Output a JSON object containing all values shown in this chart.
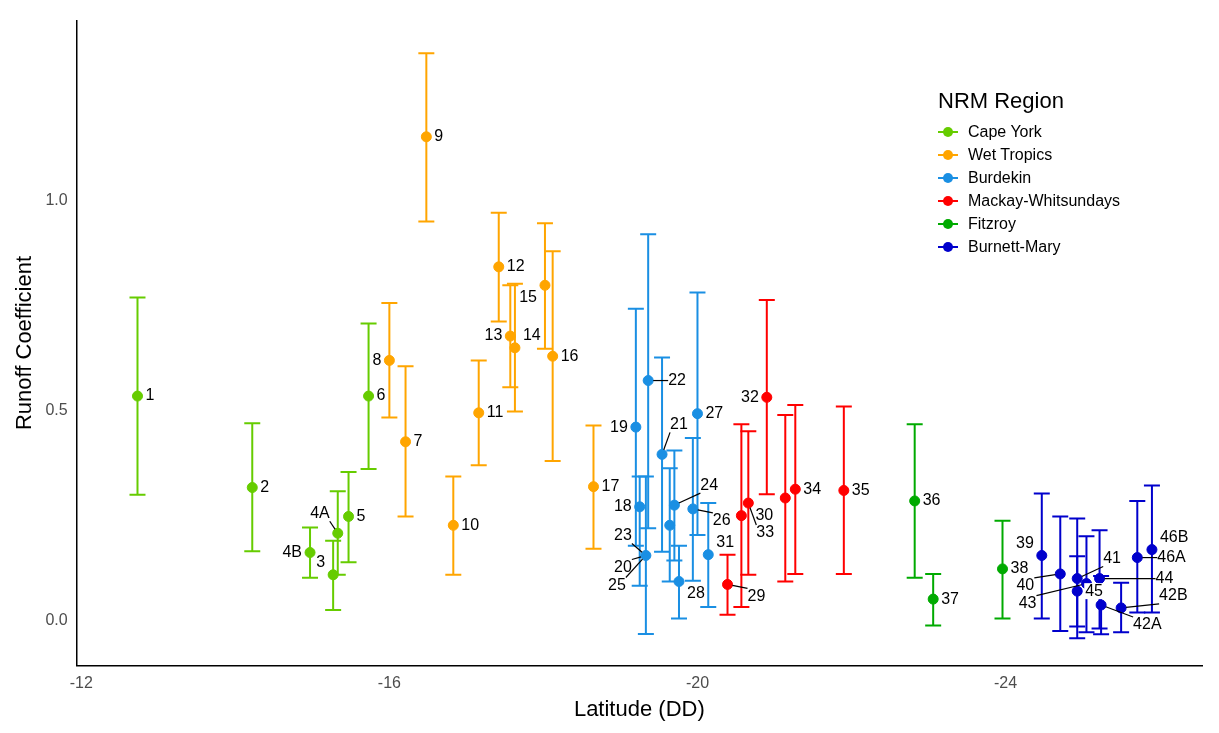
{
  "chart_data": {
    "type": "scatter",
    "xlabel": "Latitude (DD)",
    "ylabel": "Runoff Coefficient",
    "legend_title": "NRM Region",
    "legend": "top right",
    "grid": false,
    "marker": "circle",
    "xlim": [
      -11.94,
      -26.55
    ],
    "ylim": [
      -0.107,
      1.43
    ],
    "xticks": [
      -12,
      -16,
      -20,
      -24
    ],
    "yticks": [
      {
        "value": 0,
        "label": "0.0"
      },
      {
        "value": 0.5,
        "label": "0.5"
      },
      {
        "value": 1,
        "label": "1.0"
      }
    ],
    "series": [
      {
        "name": "Cape York",
        "color": "#66cc00",
        "x": [
          -12.73,
          -14.22,
          -15.27,
          -15.33,
          -14.97,
          -15.47,
          -15.73
        ],
        "values": [
          0.535,
          0.317,
          0.109,
          0.208,
          0.162,
          0.248,
          0.535
        ],
        "errors": [
          [
            0.3,
            0.77
          ],
          [
            0.165,
            0.47
          ],
          [
            0.025,
            0.19
          ],
          [
            0.109,
            0.308
          ],
          [
            0.102,
            0.222
          ],
          [
            0.139,
            0.354
          ],
          [
            0.361,
            0.708
          ]
        ]
      },
      {
        "name": "Wet Tropics",
        "color": "#ffa500",
        "x": [
          -16.21,
          -16.0,
          -16.48,
          -16.83,
          -17.16,
          -17.42,
          -17.57,
          -17.63,
          -18.02,
          -18.12,
          -18.65
        ],
        "values": [
          0.426,
          0.62,
          1.153,
          0.227,
          0.495,
          0.843,
          0.678,
          0.65,
          0.799,
          0.63,
          0.319
        ],
        "errors": [
          [
            0.248,
            0.606
          ],
          [
            0.484,
            0.757
          ],
          [
            0.951,
            1.352
          ],
          [
            0.109,
            0.343
          ],
          [
            0.37,
            0.62
          ],
          [
            0.713,
            0.972
          ],
          [
            0.556,
            0.799
          ],
          [
            0.498,
            0.803
          ],
          [
            0.648,
            0.947
          ],
          [
            0.38,
            0.88
          ],
          [
            0.171,
            0.465
          ]
        ]
      },
      {
        "name": "Burdekin",
        "color": "#1a8fe3",
        "x": [
          -19.25,
          -19.2,
          -19.33,
          -19.36,
          -19.54,
          -19.64,
          -19.7,
          -19.76,
          -19.94,
          -20.0,
          -20.14
        ],
        "values": [
          0.271,
          0.461,
          0.155,
          0.572,
          0.396,
          0.227,
          0.275,
          0.093,
          0.266,
          0.493,
          0.157
        ],
        "errors": [
          [
            0.083,
            0.343
          ],
          [
            0.178,
            0.743
          ],
          [
            -0.032,
            0.343
          ],
          [
            0.22,
            0.921
          ],
          [
            0.164,
            0.627
          ],
          [
            0.093,
            0.363
          ],
          [
            0.143,
            0.405
          ],
          [
            0.005,
            0.178
          ],
          [
            0.095,
            0.435
          ],
          [
            0.204,
            0.782
          ],
          [
            0.032,
            0.28
          ]
        ]
      },
      {
        "name": "Mackay-Whitsundays",
        "color": "#ff0000",
        "x": [
          -20.39,
          -20.57,
          -20.66,
          -20.9,
          -21.14,
          -21.27,
          -21.9
        ],
        "values": [
          0.086,
          0.25,
          0.28,
          0.532,
          0.292,
          0.313,
          0.31
        ],
        "errors": [
          [
            0.014,
            0.157
          ],
          [
            0.032,
            0.468
          ],
          [
            0.109,
            0.451
          ],
          [
            0.301,
            0.764
          ],
          [
            0.093,
            0.49
          ],
          [
            0.111,
            0.514
          ],
          [
            0.111,
            0.51
          ]
        ]
      },
      {
        "name": "Fitzroy",
        "color": "#00aa00",
        "x": [
          -22.82,
          -23.06,
          -23.96
        ],
        "values": [
          0.285,
          0.051,
          0.123
        ],
        "errors": [
          [
            0.102,
            0.468
          ],
          [
            -0.012,
            0.111
          ],
          [
            0.005,
            0.238
          ]
        ]
      },
      {
        "name": "Burnett-Mary",
        "color": "#0000cc",
        "x": [
          -24.47,
          -24.71,
          -24.93,
          -24.93,
          -25.05,
          -25.22,
          -25.24,
          -25.5,
          -25.71,
          -25.9
        ],
        "values": [
          0.155,
          0.111,
          0.1,
          0.07,
          0.088,
          0.1,
          0.037,
          0.03,
          0.15,
          0.169
        ],
        "errors": [
          [
            0.005,
            0.303
          ],
          [
            -0.025,
            0.248
          ],
          [
            -0.042,
            0.243
          ],
          [
            -0.014,
            0.153
          ],
          [
            -0.028,
            0.201
          ],
          [
            -0.019,
            0.215
          ],
          [
            -0.033,
            0.106
          ],
          [
            -0.028,
            0.09
          ],
          [
            0.019,
            0.285
          ],
          [
            0.019,
            0.322
          ]
        ]
      }
    ],
    "annotations": [
      {
        "text": "1",
        "x": -12.73,
        "y": 0.535
      },
      {
        "text": "2",
        "x": -14.22,
        "y": 0.317
      },
      {
        "text": "3",
        "x": -15.27,
        "y": 0.109
      },
      {
        "text": "4A",
        "x": -15.33,
        "y": 0.208
      },
      {
        "text": "4B",
        "x": -14.97,
        "y": 0.162
      },
      {
        "text": "5",
        "x": -15.47,
        "y": 0.248
      },
      {
        "text": "6",
        "x": -15.73,
        "y": 0.535
      },
      {
        "text": "7",
        "x": -16.21,
        "y": 0.426
      },
      {
        "text": "8",
        "x": -16.0,
        "y": 0.62
      },
      {
        "text": "9",
        "x": -16.48,
        "y": 1.153
      },
      {
        "text": "10",
        "x": -16.83,
        "y": 0.227
      },
      {
        "text": "11",
        "x": -17.16,
        "y": 0.495
      },
      {
        "text": "12",
        "x": -17.42,
        "y": 0.843
      },
      {
        "text": "13",
        "x": -17.57,
        "y": 0.678
      },
      {
        "text": "14",
        "x": -17.63,
        "y": 0.65
      },
      {
        "text": "15",
        "x": -18.02,
        "y": 0.799
      },
      {
        "text": "16",
        "x": -18.12,
        "y": 0.63
      },
      {
        "text": "17",
        "x": -18.65,
        "y": 0.319
      },
      {
        "text": "18",
        "x": -19.25,
        "y": 0.271
      },
      {
        "text": "19",
        "x": -19.2,
        "y": 0.461
      },
      {
        "text": "20",
        "x": -19.33,
        "y": 0.155
      },
      {
        "text": "21",
        "x": -19.54,
        "y": 0.396
      },
      {
        "text": "22",
        "x": -19.36,
        "y": 0.572
      },
      {
        "text": "23",
        "x": -19.33,
        "y": 0.155
      },
      {
        "text": "24",
        "x": -19.7,
        "y": 0.275
      },
      {
        "text": "25",
        "x": -19.33,
        "y": 0.155
      },
      {
        "text": "26",
        "x": -19.94,
        "y": 0.266
      },
      {
        "text": "27",
        "x": -20.0,
        "y": 0.493
      },
      {
        "text": "28",
        "x": -19.76,
        "y": 0.093
      },
      {
        "text": "29",
        "x": -20.39,
        "y": 0.086
      },
      {
        "text": "30",
        "x": -20.57,
        "y": 0.25
      },
      {
        "text": "31",
        "x": -20.14,
        "y": 0.157
      },
      {
        "text": "32",
        "x": -20.9,
        "y": 0.532
      },
      {
        "text": "33",
        "x": -20.66,
        "y": 0.28
      },
      {
        "text": "34",
        "x": -21.27,
        "y": 0.313
      },
      {
        "text": "35",
        "x": -21.9,
        "y": 0.31
      },
      {
        "text": "36",
        "x": -22.82,
        "y": 0.285
      },
      {
        "text": "37",
        "x": -23.06,
        "y": 0.051
      },
      {
        "text": "38",
        "x": -23.96,
        "y": 0.123
      },
      {
        "text": "39",
        "x": -24.47,
        "y": 0.155
      },
      {
        "text": "40",
        "x": -24.71,
        "y": 0.111
      },
      {
        "text": "41",
        "x": -24.93,
        "y": 0.1
      },
      {
        "text": "42A",
        "x": -25.24,
        "y": 0.037
      },
      {
        "text": "42B",
        "x": -25.5,
        "y": 0.03
      },
      {
        "text": "43",
        "x": -25.05,
        "y": 0.088
      },
      {
        "text": "44",
        "x": -25.22,
        "y": 0.1
      },
      {
        "text": "45",
        "x": -24.93,
        "y": 0.07
      },
      {
        "text": "46A",
        "x": -25.71,
        "y": 0.15
      },
      {
        "text": "46B",
        "x": -25.9,
        "y": 0.169
      }
    ]
  }
}
